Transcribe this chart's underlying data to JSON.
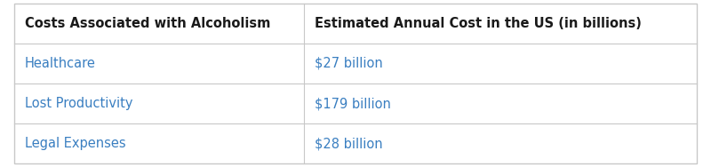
{
  "col1_header": "Costs Associated with Alcoholism",
  "col2_header": "Estimated Annual Cost in the US (in billions)",
  "rows": [
    [
      "Healthcare",
      "$27 billion"
    ],
    [
      "Lost Productivity",
      "$179 billion"
    ],
    [
      "Legal Expenses",
      "$28 billion"
    ]
  ],
  "header_text_color": "#1a1a1a",
  "row_text_color": "#3a7fc1",
  "background_color": "#ffffff",
  "border_color": "#c8c8c8",
  "col_split": 0.425,
  "header_fontsize": 10.5,
  "row_fontsize": 10.5,
  "figsize": [
    8.0,
    1.88
  ]
}
